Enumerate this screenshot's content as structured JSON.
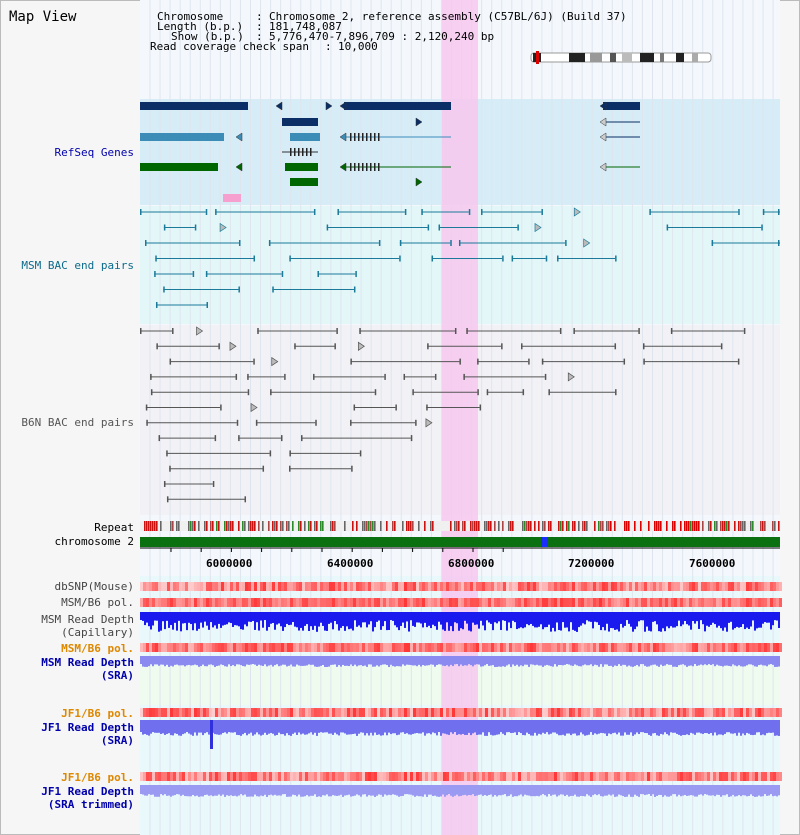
{
  "view_title": "Map View",
  "info": {
    "chromosome_label": "Chromosome",
    "chromosome_value": "Chromosome 2, reference assembly (C57BL/6J) (Build 37)",
    "length_label": "Length (b.p.)",
    "length_value": "181,748,087",
    "show_label": "Show (b.p.)",
    "show_value": "5,776,470-7,896,709 : 2,120,240 bp",
    "coverage_label": "Read coverage check span",
    "coverage_value": "10,000"
  },
  "tracks": {
    "refseq": "RefSeq Genes",
    "msm_bac": "MSM BAC end pairs",
    "b6n_bac": "B6N BAC end pairs",
    "repeat": "Repeat",
    "chromosome": "chromosome 2",
    "dbsnp": "dbSNP(Mouse)",
    "msm_b6_pol_1": "MSM/B6 pol.",
    "msm_depth_cap_1": "MSM Read Depth",
    "msm_depth_cap_2": "(Capillary)",
    "msm_b6_pol_2": "MSM/B6 pol.",
    "msm_depth_sra_1": "MSM Read Depth",
    "msm_depth_sra_2": "(SRA)",
    "jf1_b6_pol_1": "JF1/B6 pol.",
    "jf1_depth_sra_1": "JF1 Read Depth",
    "jf1_depth_sra_2": "(SRA)",
    "jf1_b6_pol_2": "JF1/B6 pol.",
    "jf1_depth_trim_1": "JF1 Read Depth",
    "jf1_depth_trim_2": "(SRA trimmed)"
  },
  "axis_ticks": [
    "6000000",
    "6400000",
    "6800000",
    "7200000",
    "7600000"
  ],
  "colors": {
    "refseq_dark": "#0b2e66",
    "refseq_mid": "#3c8cb8",
    "refseq_green": "#006600",
    "msm_teal": "#1b7a9a",
    "b6n_gray": "#555555",
    "highlight_pink": "#f7c8ee",
    "label_blue": "#0000aa",
    "label_orange": "#dd8800",
    "msm_label_teal": "#0b6a8a"
  }
}
